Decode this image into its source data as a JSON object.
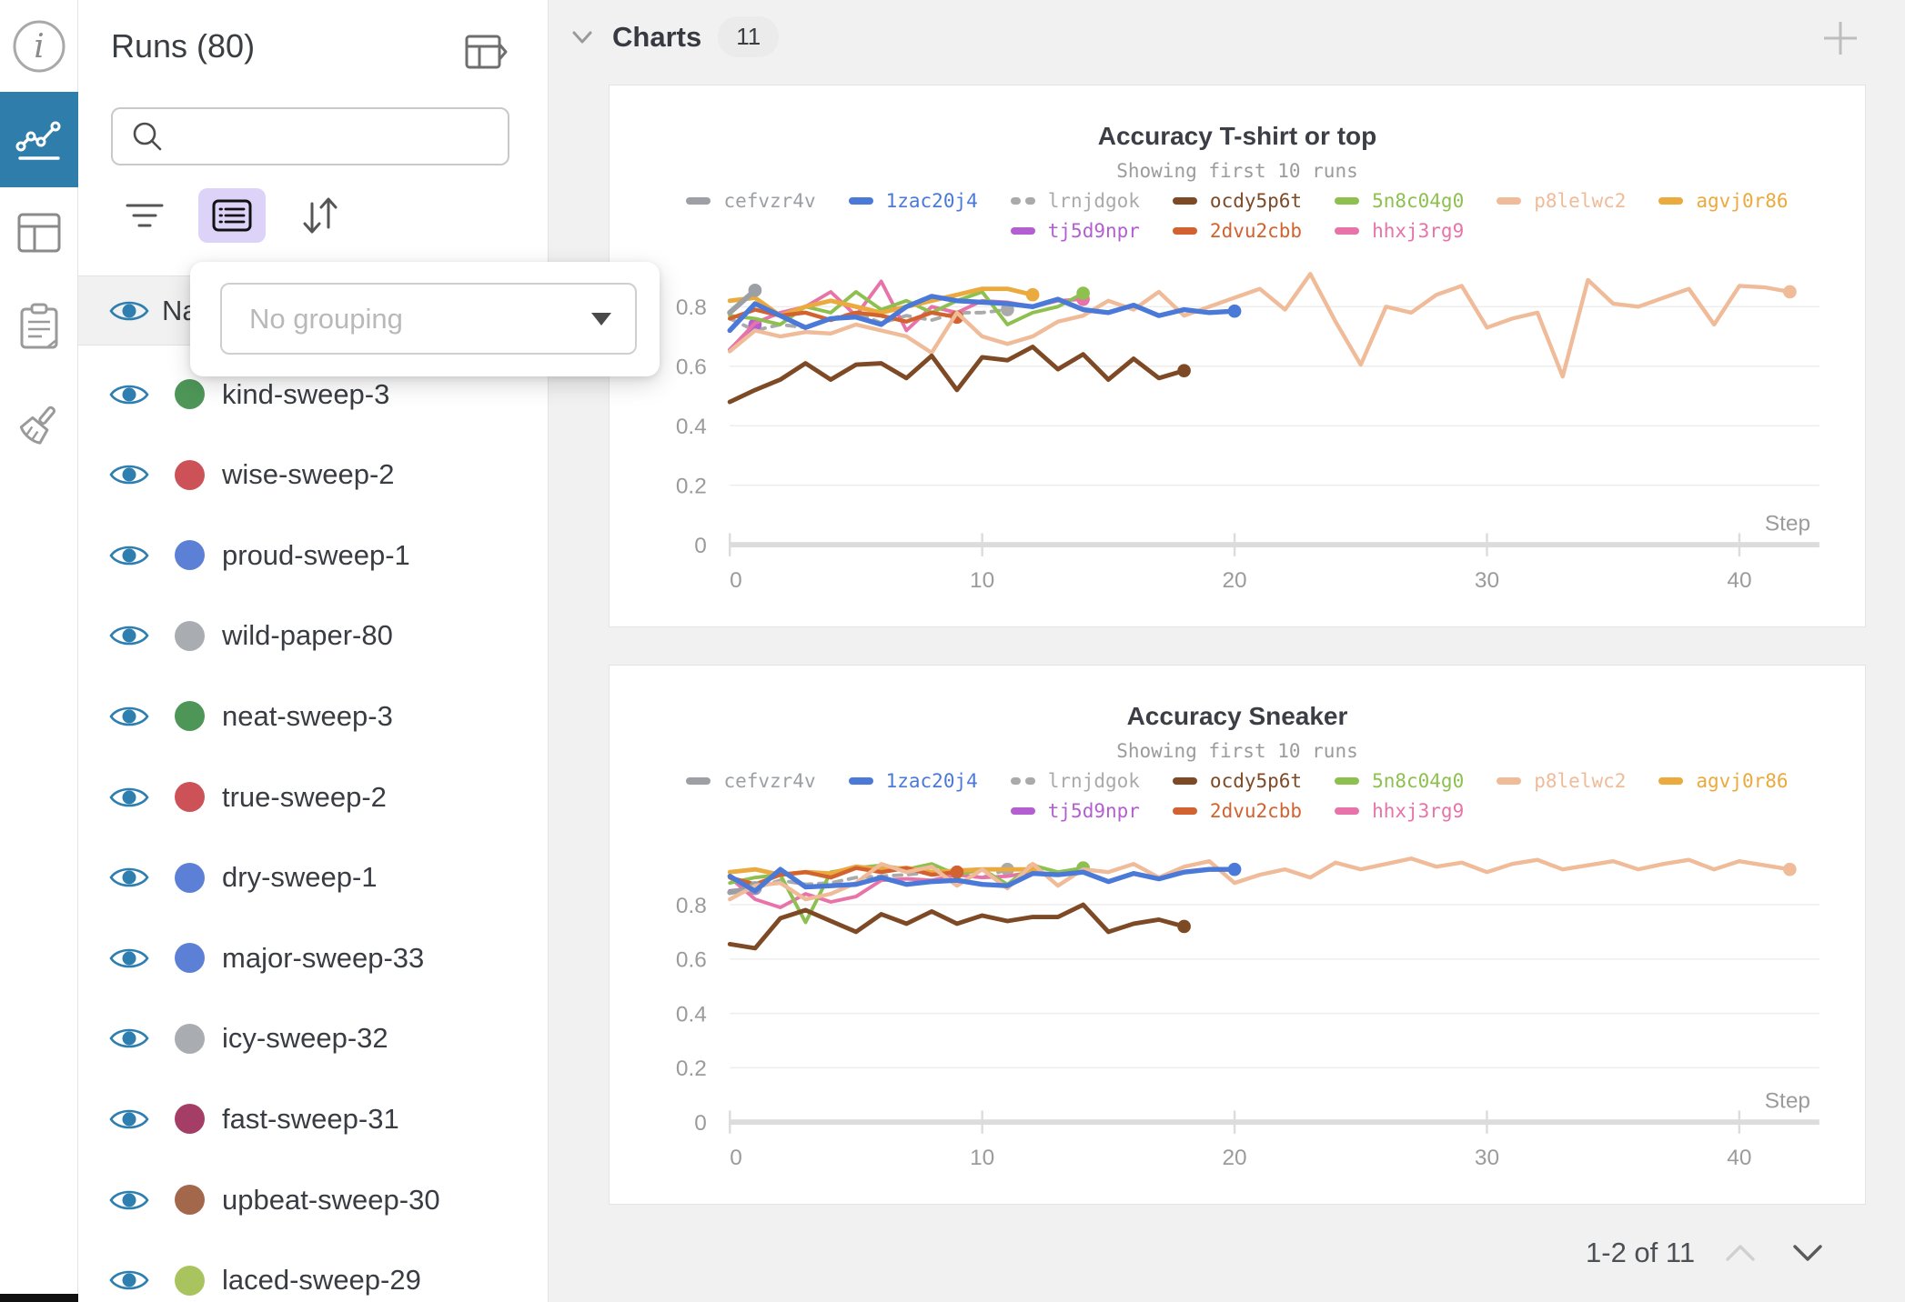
{
  "rail": {
    "icons": [
      "info-icon",
      "line-chart-icon",
      "table-icon",
      "clipboard-icon",
      "brush-icon"
    ]
  },
  "runs_panel": {
    "title": "Runs (80)",
    "search": {
      "placeholder": ""
    },
    "toolbar": {
      "filter": "filter-icon",
      "list": "list-view-icon",
      "sort": "sort-icon"
    },
    "name_row_label": "Na",
    "grouping": {
      "placeholder": "No grouping"
    },
    "runs": [
      {
        "name": "kind-sweep-3",
        "color": "#4e9658"
      },
      {
        "name": "wise-sweep-2",
        "color": "#cc5257"
      },
      {
        "name": "proud-sweep-1",
        "color": "#5c80d6"
      },
      {
        "name": "wild-paper-80",
        "color": "#a9acb0"
      },
      {
        "name": "neat-sweep-3",
        "color": "#4e9658"
      },
      {
        "name": "true-sweep-2",
        "color": "#cc5257"
      },
      {
        "name": "dry-sweep-1",
        "color": "#5c80d6"
      },
      {
        "name": "major-sweep-33",
        "color": "#5c80d6"
      },
      {
        "name": "icy-sweep-32",
        "color": "#a9acb0"
      },
      {
        "name": "fast-sweep-31",
        "color": "#a43e66"
      },
      {
        "name": "upbeat-sweep-30",
        "color": "#a3674c"
      },
      {
        "name": "laced-sweep-29",
        "color": "#a9c45e"
      }
    ]
  },
  "main": {
    "header": {
      "title": "Charts",
      "count": "11"
    },
    "pagination": {
      "label": "1-2 of 11"
    }
  },
  "chart_data": [
    {
      "type": "line",
      "title": "Accuracy T-shirt or top",
      "subtitle": "Showing first 10 runs",
      "xlabel": "Step",
      "x_ticks": [
        0,
        10,
        20,
        30,
        40
      ],
      "y_ticks": [
        0,
        0.2,
        0.4,
        0.6,
        0.8
      ],
      "ylim": [
        0,
        1
      ],
      "grid": true,
      "legend_position": "top",
      "series": [
        {
          "name": "cefvzr4v",
          "color": "#9ca0a5",
          "dash": false,
          "width": 6,
          "end_dot": true,
          "x_start": 0,
          "values": [
            0.78,
            0.855
          ]
        },
        {
          "name": "1zac20j4",
          "color": "#4a79d8",
          "dash": false,
          "width": 5.5,
          "end_dot": true,
          "x_start": 0,
          "values": [
            0.72,
            0.81,
            0.77,
            0.73,
            0.76,
            0.765,
            0.74,
            0.8,
            0.835,
            0.82,
            0.815,
            0.81,
            0.8,
            0.825,
            0.79,
            0.78,
            0.805,
            0.77,
            0.79,
            0.78,
            0.785
          ]
        },
        {
          "name": "lrnjdgok",
          "color": "#aaaaaa",
          "dash": true,
          "width": 4,
          "end_dot": true,
          "x_start": 0,
          "values": [
            0.76,
            0.72,
            0.74,
            0.73,
            0.76,
            0.78,
            0.745,
            0.77,
            0.755,
            0.78,
            0.78,
            0.79
          ]
        },
        {
          "name": "ocdy5p6t",
          "color": "#7e4a26",
          "dash": false,
          "width": 5,
          "end_dot": true,
          "x_start": 0,
          "values": [
            0.48,
            0.52,
            0.555,
            0.61,
            0.555,
            0.605,
            0.61,
            0.56,
            0.635,
            0.52,
            0.63,
            0.62,
            0.665,
            0.59,
            0.64,
            0.555,
            0.625,
            0.56,
            0.585
          ]
        },
        {
          "name": "5n8c04g0",
          "color": "#8dc04f",
          "dash": false,
          "width": 4,
          "end_dot": true,
          "x_start": 0,
          "values": [
            0.77,
            0.76,
            0.74,
            0.8,
            0.78,
            0.85,
            0.79,
            0.82,
            0.78,
            0.82,
            0.85,
            0.74,
            0.78,
            0.8,
            0.845
          ]
        },
        {
          "name": "p8lelwc2",
          "color": "#efbb99",
          "dash": false,
          "width": 4.5,
          "end_dot": true,
          "x_start": 0,
          "values": [
            0.65,
            0.72,
            0.7,
            0.715,
            0.71,
            0.74,
            0.72,
            0.7,
            0.645,
            0.78,
            0.7,
            0.675,
            0.7,
            0.75,
            0.77,
            0.82,
            0.79,
            0.85,
            0.77,
            0.8,
            0.83,
            0.86,
            0.79,
            0.91,
            0.75,
            0.605,
            0.8,
            0.78,
            0.84,
            0.87,
            0.73,
            0.76,
            0.78,
            0.565,
            0.89,
            0.81,
            0.8,
            0.83,
            0.86,
            0.74,
            0.87,
            0.865,
            0.85
          ]
        },
        {
          "name": "agvj0r86",
          "color": "#eaaa3d",
          "dash": false,
          "width": 5,
          "end_dot": true,
          "x_start": 0,
          "values": [
            0.82,
            0.83,
            0.77,
            0.8,
            0.82,
            0.8,
            0.78,
            0.8,
            0.82,
            0.84,
            0.86,
            0.86,
            0.84
          ]
        },
        {
          "name": "tj5d9npr",
          "color": "#b35fd1",
          "dash": false,
          "width": 4.5,
          "end_dot": true,
          "x_start": 0,
          "values": [
            0.655,
            0.74
          ]
        },
        {
          "name": "2dvu2cbb",
          "color": "#d2622f",
          "dash": false,
          "width": 4.5,
          "end_dot": true,
          "x_start": 0,
          "values": [
            0.76,
            0.79,
            0.77,
            0.78,
            0.755,
            0.78,
            0.77,
            0.75,
            0.78,
            0.765
          ]
        },
        {
          "name": "hhxj3rg9",
          "color": "#e873a8",
          "dash": false,
          "width": 4,
          "end_dot": true,
          "x_start": 0,
          "values": [
            0.655,
            0.745,
            0.78,
            0.8,
            0.85,
            0.77,
            0.885,
            0.72,
            0.8,
            0.78,
            0.82,
            0.815,
            0.8,
            0.82,
            0.825
          ]
        }
      ]
    },
    {
      "type": "line",
      "title": "Accuracy Sneaker",
      "subtitle": "Showing first 10 runs",
      "xlabel": "Step",
      "x_ticks": [
        0,
        10,
        20,
        30,
        40
      ],
      "y_ticks": [
        0,
        0.2,
        0.4,
        0.6,
        0.8
      ],
      "ylim": [
        0,
        1
      ],
      "grid": true,
      "legend_position": "top",
      "series": [
        {
          "name": "cefvzr4v",
          "color": "#9ca0a5",
          "dash": false,
          "width": 6,
          "end_dot": true,
          "x_start": 0,
          "values": [
            0.845,
            0.862
          ]
        },
        {
          "name": "1zac20j4",
          "color": "#4a79d8",
          "dash": false,
          "width": 5.5,
          "end_dot": true,
          "x_start": 0,
          "values": [
            0.905,
            0.85,
            0.93,
            0.865,
            0.87,
            0.875,
            0.9,
            0.875,
            0.885,
            0.89,
            0.875,
            0.87,
            0.915,
            0.91,
            0.92,
            0.885,
            0.915,
            0.895,
            0.92,
            0.93,
            0.93
          ]
        },
        {
          "name": "lrnjdgok",
          "color": "#aaaaaa",
          "dash": true,
          "width": 4,
          "end_dot": true,
          "x_start": 0,
          "values": [
            0.85,
            0.86,
            0.89,
            0.875,
            0.88,
            0.9,
            0.905,
            0.91,
            0.92,
            0.91,
            0.9,
            0.93
          ]
        },
        {
          "name": "ocdy5p6t",
          "color": "#7e4a26",
          "dash": false,
          "width": 5,
          "end_dot": true,
          "x_start": 0,
          "values": [
            0.655,
            0.64,
            0.75,
            0.78,
            0.74,
            0.7,
            0.765,
            0.73,
            0.775,
            0.73,
            0.76,
            0.74,
            0.755,
            0.755,
            0.8,
            0.7,
            0.73,
            0.745,
            0.72
          ]
        },
        {
          "name": "5n8c04g0",
          "color": "#8dc04f",
          "dash": false,
          "width": 4,
          "end_dot": true,
          "x_start": 0,
          "values": [
            0.88,
            0.9,
            0.91,
            0.735,
            0.92,
            0.935,
            0.945,
            0.93,
            0.95,
            0.91,
            0.93,
            0.875,
            0.945,
            0.92,
            0.935
          ]
        },
        {
          "name": "p8lelwc2",
          "color": "#efbb99",
          "dash": false,
          "width": 4.5,
          "end_dot": true,
          "x_start": 0,
          "values": [
            0.82,
            0.87,
            0.88,
            0.82,
            0.84,
            0.88,
            0.95,
            0.92,
            0.94,
            0.87,
            0.93,
            0.86,
            0.95,
            0.87,
            0.93,
            0.92,
            0.95,
            0.9,
            0.94,
            0.96,
            0.88,
            0.91,
            0.93,
            0.9,
            0.955,
            0.93,
            0.95,
            0.97,
            0.94,
            0.955,
            0.92,
            0.95,
            0.965,
            0.93,
            0.945,
            0.96,
            0.93,
            0.95,
            0.965,
            0.93,
            0.96,
            0.945,
            0.93
          ]
        },
        {
          "name": "agvj0r86",
          "color": "#eaaa3d",
          "dash": false,
          "width": 5,
          "end_dot": true,
          "x_start": 0,
          "values": [
            0.92,
            0.93,
            0.91,
            0.92,
            0.915,
            0.94,
            0.93,
            0.935,
            0.92,
            0.925,
            0.93,
            0.93,
            0.93
          ]
        },
        {
          "name": "tj5d9npr",
          "color": "#b35fd1",
          "dash": false,
          "width": 4.5,
          "end_dot": true,
          "x_start": 0,
          "values": [
            0.85,
            0.86
          ]
        },
        {
          "name": "2dvu2cbb",
          "color": "#d2622f",
          "dash": false,
          "width": 4.5,
          "end_dot": true,
          "x_start": 0,
          "values": [
            0.9,
            0.875,
            0.91,
            0.92,
            0.9,
            0.935,
            0.92,
            0.935,
            0.91,
            0.92
          ]
        },
        {
          "name": "hhxj3rg9",
          "color": "#e873a8",
          "dash": false,
          "width": 4,
          "end_dot": true,
          "x_start": 0,
          "values": [
            0.9,
            0.82,
            0.79,
            0.84,
            0.81,
            0.83,
            0.89,
            0.895,
            0.89,
            0.91,
            0.9,
            0.905,
            0.92,
            0.91,
            0.935
          ]
        }
      ]
    }
  ]
}
